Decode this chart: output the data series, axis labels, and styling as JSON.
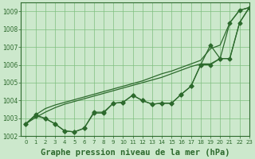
{
  "background_color": "#cce8cc",
  "grid_color": "#7fbf7f",
  "line_color": "#2d6a2d",
  "xlabel": "Graphe pression niveau de la mer (hPa)",
  "xlabel_fontsize": 7.5,
  "ylim": [
    1002,
    1009.5
  ],
  "xlim": [
    -0.5,
    23
  ],
  "yticks": [
    1002,
    1003,
    1004,
    1005,
    1006,
    1007,
    1008,
    1009
  ],
  "xticks": [
    0,
    1,
    2,
    3,
    4,
    5,
    6,
    7,
    8,
    9,
    10,
    11,
    12,
    13,
    14,
    15,
    16,
    17,
    18,
    19,
    20,
    21,
    22,
    23
  ],
  "upper1": [
    1002.7,
    1003.2,
    1003.55,
    1003.75,
    1003.9,
    1004.05,
    1004.2,
    1004.35,
    1004.5,
    1004.65,
    1004.8,
    1004.95,
    1005.1,
    1005.3,
    1005.5,
    1005.65,
    1005.85,
    1006.05,
    1006.25,
    1006.9,
    1007.1,
    1008.35,
    1009.05,
    1009.2
  ],
  "upper2": [
    1002.7,
    1003.05,
    1003.35,
    1003.6,
    1003.8,
    1003.95,
    1004.1,
    1004.25,
    1004.4,
    1004.55,
    1004.7,
    1004.85,
    1005.0,
    1005.15,
    1005.3,
    1005.5,
    1005.7,
    1005.9,
    1006.05,
    1006.05,
    1006.35,
    1006.35,
    1008.35,
    1009.2
  ],
  "lower1": [
    1002.7,
    1003.2,
    1003.0,
    1002.7,
    1002.3,
    1002.25,
    1002.45,
    1003.35,
    1003.35,
    1003.85,
    1003.9,
    1004.3,
    1004.0,
    1003.8,
    1003.85,
    1003.85,
    1004.35,
    1004.8,
    1006.0,
    1007.1,
    1006.35,
    1008.35,
    1009.05,
    1009.2
  ],
  "lower2": [
    1002.7,
    1003.15,
    1003.0,
    1002.7,
    1002.3,
    1002.25,
    1002.45,
    1003.3,
    1003.3,
    1003.85,
    1003.9,
    1004.3,
    1004.0,
    1003.8,
    1003.85,
    1003.85,
    1004.35,
    1004.8,
    1006.0,
    1006.0,
    1006.35,
    1006.35,
    1008.35,
    1009.2
  ],
  "marker": "D",
  "markersize": 2.5,
  "linewidth": 0.9
}
